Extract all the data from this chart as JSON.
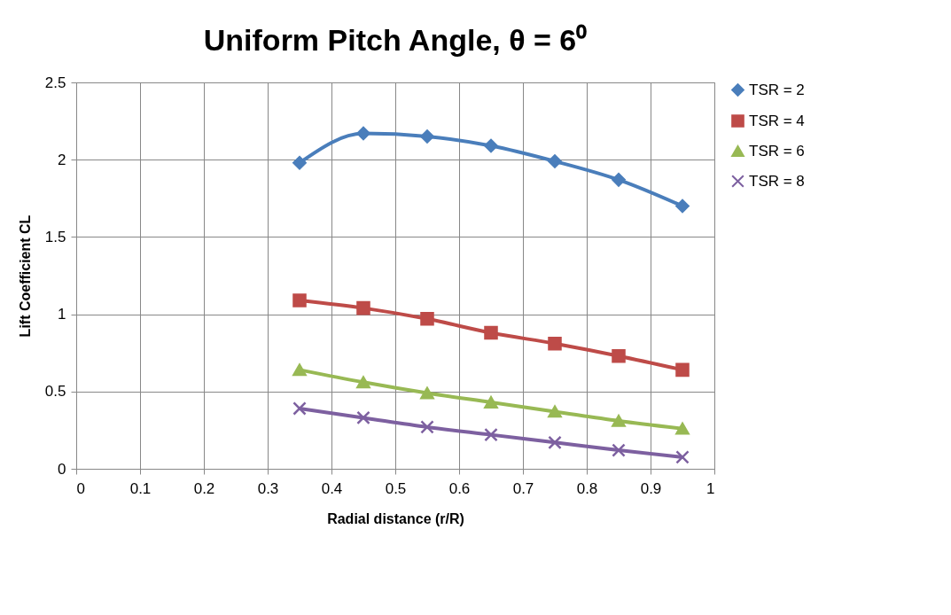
{
  "chart_data": {
    "type": "line",
    "title": "Uniform Pitch Angle, θ = 6⁰",
    "xlabel": "Radial distance (r/R)",
    "ylabel": "Lift Coefficient CL",
    "x": [
      0.35,
      0.45,
      0.55,
      0.65,
      0.75,
      0.85,
      0.95
    ],
    "series": [
      {
        "name": "TSR = 2",
        "color": "#4a7ebb",
        "marker": "diamond",
        "values": [
          1.98,
          2.17,
          2.15,
          2.09,
          1.99,
          1.87,
          1.7
        ]
      },
      {
        "name": "TSR = 4",
        "color": "#be4b48",
        "marker": "square",
        "values": [
          1.09,
          1.04,
          0.97,
          0.88,
          0.81,
          0.73,
          0.64
        ]
      },
      {
        "name": "TSR = 6",
        "color": "#98b954",
        "marker": "triangle",
        "values": [
          0.64,
          0.56,
          0.49,
          0.43,
          0.37,
          0.31,
          0.26
        ]
      },
      {
        "name": "TSR = 8",
        "color": "#7d60a0",
        "marker": "cross",
        "values": [
          0.39,
          0.33,
          0.27,
          0.22,
          0.17,
          0.12,
          0.075
        ]
      }
    ],
    "xlim": [
      0,
      1
    ],
    "xticks": [
      0,
      0.1,
      0.2,
      0.3,
      0.4,
      0.5,
      0.6,
      0.7,
      0.8,
      0.9,
      1
    ],
    "ylim": [
      0,
      2.5
    ],
    "yticks": [
      0,
      0.5,
      1,
      1.5,
      2,
      2.5
    ],
    "grid": true,
    "legend": "right",
    "line_style": "solid"
  }
}
